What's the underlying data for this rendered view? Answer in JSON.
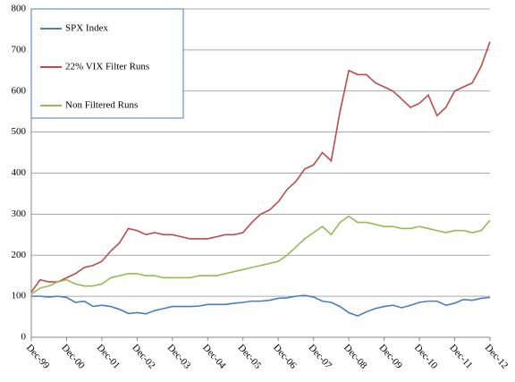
{
  "chart_data": {
    "type": "line",
    "x": [
      "Dec-99",
      "Mar-00",
      "Jun-00",
      "Sep-00",
      "Dec-00",
      "Mar-01",
      "Jun-01",
      "Sep-01",
      "Dec-01",
      "Mar-02",
      "Jun-02",
      "Sep-02",
      "Dec-02",
      "Mar-03",
      "Jun-03",
      "Sep-03",
      "Dec-03",
      "Mar-04",
      "Jun-04",
      "Sep-04",
      "Dec-04",
      "Mar-05",
      "Jun-05",
      "Sep-05",
      "Dec-05",
      "Mar-06",
      "Jun-06",
      "Sep-06",
      "Dec-06",
      "Mar-07",
      "Jun-07",
      "Sep-07",
      "Dec-07",
      "Mar-08",
      "Jun-08",
      "Sep-08",
      "Dec-08",
      "Mar-09",
      "Jun-09",
      "Sep-09",
      "Dec-09",
      "Mar-10",
      "Jun-10",
      "Sep-10",
      "Dec-10",
      "Mar-11",
      "Jun-11",
      "Sep-11",
      "Dec-11",
      "Mar-12",
      "Jun-12",
      "Sep-12",
      "Dec-12"
    ],
    "xticks": [
      "Dec-99",
      "Dec-00",
      "Dec-01",
      "Dec-02",
      "Dec-03",
      "Dec-04",
      "Dec-05",
      "Dec-06",
      "Dec-07",
      "Dec-08",
      "Dec-09",
      "Dec-10",
      "Dec-11",
      "Dec-12"
    ],
    "series": [
      {
        "name": "SPX Index",
        "color": "#4a7ebb",
        "values": [
          100,
          100,
          98,
          100,
          97,
          85,
          88,
          75,
          78,
          75,
          68,
          58,
          60,
          57,
          65,
          70,
          75,
          75,
          75,
          76,
          80,
          80,
          80,
          83,
          85,
          88,
          88,
          90,
          95,
          96,
          100,
          102,
          98,
          88,
          85,
          75,
          60,
          52,
          62,
          70,
          75,
          78,
          72,
          78,
          85,
          88,
          88,
          78,
          83,
          92,
          90,
          95,
          97
        ]
      },
      {
        "name": "22% VIX Filter Runs",
        "color": "#be4b48",
        "values": [
          110,
          140,
          135,
          135,
          145,
          155,
          170,
          175,
          185,
          210,
          230,
          265,
          260,
          250,
          255,
          250,
          250,
          245,
          240,
          240,
          240,
          245,
          250,
          250,
          255,
          280,
          300,
          310,
          330,
          360,
          380,
          410,
          420,
          450,
          430,
          550,
          650,
          640,
          640,
          620,
          610,
          600,
          580,
          560,
          570,
          590,
          540,
          560,
          600,
          610,
          620,
          660,
          720
        ]
      },
      {
        "name": "Non Filtered Runs",
        "color": "#98b954",
        "values": [
          105,
          120,
          125,
          135,
          140,
          130,
          125,
          125,
          130,
          145,
          150,
          155,
          155,
          150,
          150,
          145,
          145,
          145,
          145,
          150,
          150,
          150,
          155,
          160,
          165,
          170,
          175,
          180,
          185,
          200,
          220,
          240,
          255,
          270,
          250,
          280,
          295,
          280,
          280,
          275,
          270,
          270,
          265,
          265,
          270,
          265,
          260,
          255,
          260,
          260,
          255,
          260,
          285
        ]
      }
    ],
    "ylim": [
      0,
      800
    ],
    "yticks": [
      0,
      100,
      200,
      300,
      400,
      500,
      600,
      700,
      800
    ],
    "grid": true,
    "legend": "upper left"
  }
}
